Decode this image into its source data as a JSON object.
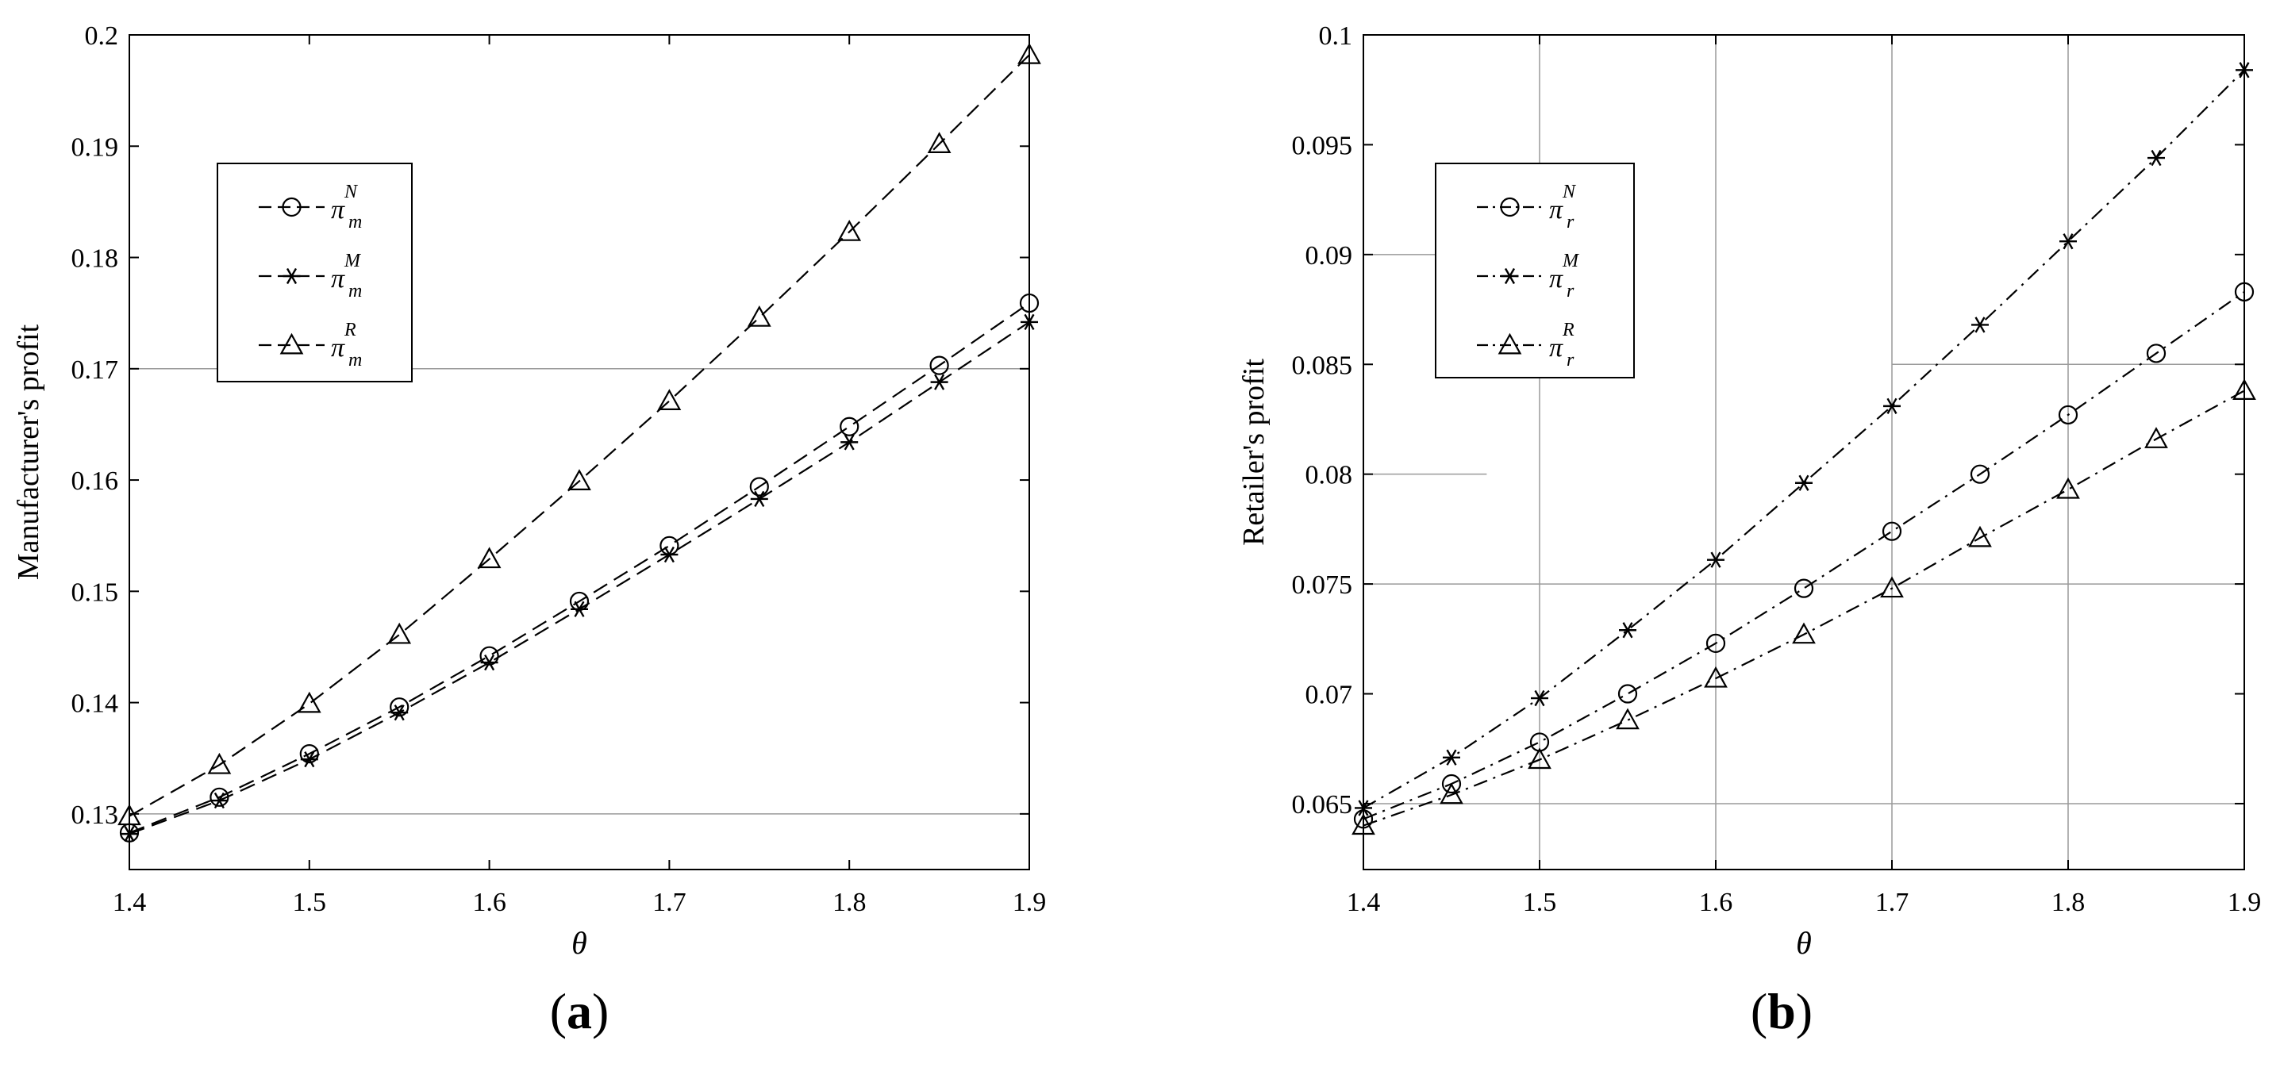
{
  "chart_data": [
    {
      "type": "line",
      "panel_label": "a",
      "xlabel": "θ",
      "ylabel": "Manufacturer's  profit",
      "xlim": [
        1.4,
        1.9
      ],
      "ylim": [
        0.125,
        0.2
      ],
      "xticks": [
        "1.4",
        "1.5",
        "1.6",
        "1.7",
        "1.8",
        "1.9"
      ],
      "yticks": [
        "0.13",
        "0.14",
        "0.15",
        "0.16",
        "0.17",
        "0.18",
        "0.19",
        "0.2"
      ],
      "grid": "partial (y = 0.13 and y = 0.17 only)",
      "legend_position": "upper-left",
      "line_style": "dashed",
      "x": [
        1.4,
        1.45,
        1.5,
        1.55,
        1.6,
        1.65,
        1.7,
        1.75,
        1.8,
        1.85,
        1.9
      ],
      "series": [
        {
          "name": "π",
          "sup": "N",
          "sub": "m",
          "marker": "circle",
          "values": [
            0.1283,
            0.1315,
            0.1354,
            0.1396,
            0.1442,
            0.1491,
            0.1541,
            0.1594,
            0.1648,
            0.1703,
            0.1759
          ]
        },
        {
          "name": "π",
          "sup": "M",
          "sub": "m",
          "marker": "star",
          "values": [
            0.1282,
            0.1312,
            0.1349,
            0.1391,
            0.1436,
            0.1484,
            0.1533,
            0.1583,
            0.1634,
            0.1688,
            0.1742
          ]
        },
        {
          "name": "π",
          "sup": "R",
          "sub": "m",
          "marker": "triangle",
          "values": [
            0.1298,
            0.1344,
            0.1399,
            0.1461,
            0.1529,
            0.1599,
            0.1671,
            0.1746,
            0.1823,
            0.1902,
            0.1982
          ]
        }
      ]
    },
    {
      "type": "line",
      "panel_label": "b",
      "xlabel": "θ",
      "ylabel": "Retailer's  profit",
      "xlim": [
        1.4,
        1.9
      ],
      "ylim": [
        0.062,
        0.1
      ],
      "xticks": [
        "1.4",
        "1.5",
        "1.6",
        "1.7",
        "1.8",
        "1.9"
      ],
      "yticks": [
        "0.065",
        "0.07",
        "0.075",
        "0.08",
        "0.085",
        "0.09",
        "0.095",
        "0.1"
      ],
      "grid": "partial vertical and horizontal segments",
      "legend_position": "upper-left",
      "line_style": "dash-dot",
      "x": [
        1.4,
        1.45,
        1.5,
        1.55,
        1.6,
        1.65,
        1.7,
        1.75,
        1.8,
        1.85,
        1.9
      ],
      "series": [
        {
          "name": "π",
          "sup": "N",
          "sub": "r",
          "marker": "circle",
          "values": [
            0.0643,
            0.0659,
            0.0678,
            0.07,
            0.0723,
            0.0748,
            0.0774,
            0.08,
            0.0827,
            0.0855,
            0.0883
          ]
        },
        {
          "name": "π",
          "sup": "M",
          "sub": "r",
          "marker": "star",
          "values": [
            0.0648,
            0.0671,
            0.0698,
            0.0729,
            0.0761,
            0.0796,
            0.0831,
            0.0868,
            0.0906,
            0.0944,
            0.0984
          ]
        },
        {
          "name": "π",
          "sup": "R",
          "sub": "r",
          "marker": "triangle",
          "values": [
            0.064,
            0.0654,
            0.067,
            0.0688,
            0.0707,
            0.0727,
            0.0748,
            0.0771,
            0.0793,
            0.0816,
            0.0838
          ]
        }
      ]
    }
  ]
}
